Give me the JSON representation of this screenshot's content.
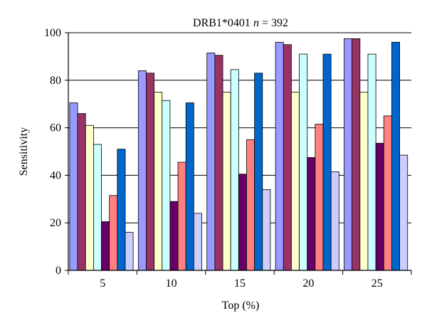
{
  "chart_data": {
    "type": "bar",
    "title_prefix": "DRB1*0401",
    "title_n_symbol": "n",
    "title_n_value": "= 392",
    "xlabel": "Top (%)",
    "ylabel": "Sensitivity",
    "categories": [
      "5",
      "10",
      "15",
      "20",
      "25"
    ],
    "ylim": [
      0,
      100
    ],
    "yticks": [
      0,
      20,
      40,
      60,
      80,
      100
    ],
    "grid": "horizontal",
    "legend": "none",
    "series": [
      {
        "color": "#9999ff",
        "values": [
          70.5,
          84,
          91.5,
          96,
          97.5
        ]
      },
      {
        "color": "#993366",
        "values": [
          66,
          83,
          90.5,
          95,
          97.5
        ]
      },
      {
        "color": "#ffffcc",
        "values": [
          61,
          75,
          75,
          75,
          75
        ]
      },
      {
        "color": "#ccffff",
        "values": [
          53,
          71.5,
          84.5,
          91,
          91
        ]
      },
      {
        "color": "#660066",
        "values": [
          20.5,
          29,
          40.5,
          47.5,
          53.5
        ]
      },
      {
        "color": "#ff8080",
        "values": [
          31.5,
          45.5,
          55,
          61.5,
          65
        ]
      },
      {
        "color": "#0066cc",
        "values": [
          51,
          70.5,
          83,
          91,
          96
        ]
      },
      {
        "color": "#ccccff",
        "values": [
          16,
          24,
          34,
          41.5,
          48.5
        ]
      }
    ]
  }
}
